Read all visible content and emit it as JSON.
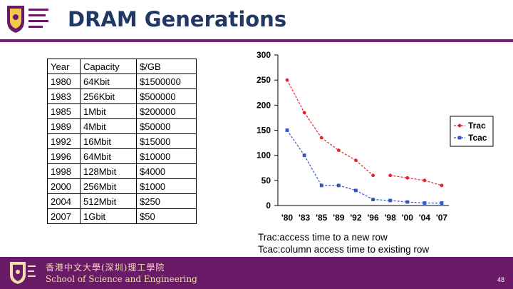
{
  "slide": {
    "title": "DRAM Generations",
    "page_number": "48",
    "footer_cn": "香港中文大學(深圳)理工學院",
    "footer_en": "School of Science and Engineering"
  },
  "table": {
    "headers": [
      "Year",
      "Capacity",
      "$/GB"
    ],
    "rows": [
      [
        "1980",
        "64Kbit",
        "$1500000"
      ],
      [
        "1983",
        "256Kbit",
        "$500000"
      ],
      [
        "1985",
        "1Mbit",
        "$200000"
      ],
      [
        "1989",
        "4Mbit",
        "$50000"
      ],
      [
        "1992",
        "16Mbit",
        "$15000"
      ],
      [
        "1996",
        "64Mbit",
        "$10000"
      ],
      [
        "1998",
        "128Mbit",
        "$4000"
      ],
      [
        "2000",
        "256Mbit",
        "$1000"
      ],
      [
        "2004",
        "512Mbit",
        "$250"
      ],
      [
        "2007",
        "1Gbit",
        "$50"
      ]
    ]
  },
  "notes": {
    "trac": "Trac:access time to a new row",
    "tcac": "Tcac:column access time to existing row"
  },
  "chart_data": {
    "type": "line",
    "categories": [
      "'80",
      "'83",
      "'85",
      "'89",
      "'92",
      "'96",
      "'98",
      "'00",
      "'04",
      "'07"
    ],
    "series": [
      {
        "name": "Trac",
        "color": "#e8232a",
        "values": [
          250,
          185,
          135,
          110,
          90,
          60,
          60,
          55,
          50,
          40
        ]
      },
      {
        "name": "Tcac",
        "color": "#3355cc",
        "values": [
          150,
          100,
          40,
          40,
          30,
          12,
          10,
          7,
          5,
          5
        ]
      }
    ],
    "gap_after_index": 5,
    "yticks": [
      0,
      50,
      100,
      150,
      200,
      250,
      300
    ],
    "ylim": [
      0,
      300
    ],
    "grid": false,
    "legend": "right",
    "title": "",
    "xlabel": "",
    "ylabel": ""
  }
}
